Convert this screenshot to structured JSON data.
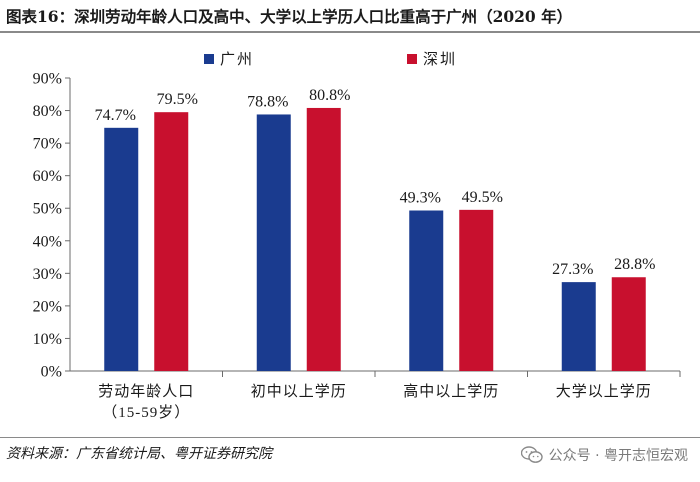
{
  "title": "图表16：深圳劳动年龄人口及高中、大学以上学历人口比重高于广州（2020 年）",
  "source": "资料来源：广东省统计局、粤开证券研究院",
  "watermark": "公众号 · 粤开志恒宏观",
  "colors": {
    "guangzhou": "#1a3b8f",
    "shenzhen": "#c8102e",
    "axis": "#555555"
  },
  "chart_data": {
    "type": "bar",
    "title": "",
    "xlabel": "",
    "ylabel": "",
    "ylim": [
      0,
      90
    ],
    "yticks": [
      "0%",
      "10%",
      "20%",
      "30%",
      "40%",
      "50%",
      "60%",
      "70%",
      "80%",
      "90%"
    ],
    "categories": [
      [
        "劳动年龄人口",
        "（15-59岁）"
      ],
      [
        "初中以上学历"
      ],
      [
        "高中以上学历"
      ],
      [
        "大学以上学历"
      ]
    ],
    "series": [
      {
        "name": "广州",
        "values": [
          74.7,
          78.8,
          49.3,
          27.3
        ],
        "labels": [
          "74.7%",
          "78.8%",
          "49.3%",
          "27.3%"
        ]
      },
      {
        "name": "深圳",
        "values": [
          79.5,
          80.8,
          49.5,
          28.8
        ],
        "labels": [
          "79.5%",
          "80.8%",
          "49.5%",
          "28.8%"
        ]
      }
    ],
    "legend_position": "top-center"
  }
}
